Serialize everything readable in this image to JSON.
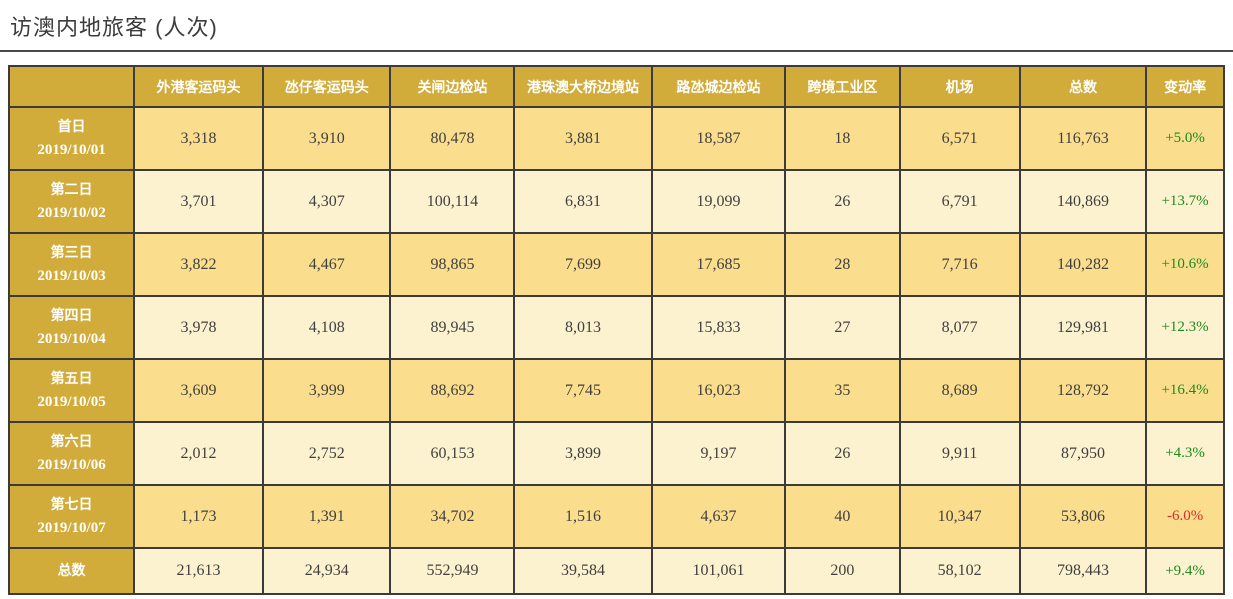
{
  "page": {
    "title": "访澳内地旅客 (人次)"
  },
  "colors": {
    "header_gold": "#D1AC3B",
    "row_dark": "#FBDE8D",
    "row_light": "#FDF2CF",
    "positive_green": "#1E8A1E",
    "negative_red": "#E02B2B",
    "border": "#3B3B3B",
    "title_gray": "#3C3C3C"
  },
  "table": {
    "columns": [
      "外港客运码头",
      "氹仔客运码头",
      "关闸边检站",
      "港珠澳大桥边境站",
      "路氹城边检站",
      "跨境工业区",
      "机场",
      "总数",
      "变动率"
    ],
    "rows": [
      {
        "label": "首日",
        "date": "2019/10/01",
        "values": [
          "3,318",
          "3,910",
          "80,478",
          "3,881",
          "18,587",
          "18",
          "6,571",
          "116,763"
        ],
        "change": "+5.0%"
      },
      {
        "label": "第二日",
        "date": "2019/10/02",
        "values": [
          "3,701",
          "4,307",
          "100,114",
          "6,831",
          "19,099",
          "26",
          "6,791",
          "140,869"
        ],
        "change": "+13.7%"
      },
      {
        "label": "第三日",
        "date": "2019/10/03",
        "values": [
          "3,822",
          "4,467",
          "98,865",
          "7,699",
          "17,685",
          "28",
          "7,716",
          "140,282"
        ],
        "change": "+10.6%"
      },
      {
        "label": "第四日",
        "date": "2019/10/04",
        "values": [
          "3,978",
          "4,108",
          "89,945",
          "8,013",
          "15,833",
          "27",
          "8,077",
          "129,981"
        ],
        "change": "+12.3%"
      },
      {
        "label": "第五日",
        "date": "2019/10/05",
        "values": [
          "3,609",
          "3,999",
          "88,692",
          "7,745",
          "16,023",
          "35",
          "8,689",
          "128,792"
        ],
        "change": "+16.4%"
      },
      {
        "label": "第六日",
        "date": "2019/10/06",
        "values": [
          "2,012",
          "2,752",
          "60,153",
          "3,899",
          "9,197",
          "26",
          "9,911",
          "87,950"
        ],
        "change": "+4.3%"
      },
      {
        "label": "第七日",
        "date": "2019/10/07",
        "values": [
          "1,173",
          "1,391",
          "34,702",
          "1,516",
          "4,637",
          "40",
          "10,347",
          "53,806"
        ],
        "change": "-6.0%"
      }
    ],
    "total_row": {
      "label": "总数",
      "values": [
        "21,613",
        "24,934",
        "552,949",
        "39,584",
        "101,061",
        "200",
        "58,102",
        "798,443"
      ],
      "change": "+9.4%"
    }
  },
  "chart_data": {
    "type": "table",
    "title": "访澳内地旅客 (人次)",
    "columns": [
      "外港客运码头",
      "氹仔客运码头",
      "关闸边检站",
      "港珠澳大桥边境站",
      "路氹城边检站",
      "跨境工业区",
      "机场",
      "总数",
      "变动率"
    ],
    "row_labels": [
      "首日 2019/10/01",
      "第二日 2019/10/02",
      "第三日 2019/10/03",
      "第四日 2019/10/04",
      "第五日 2019/10/05",
      "第六日 2019/10/06",
      "第七日 2019/10/07",
      "总数"
    ],
    "rows": [
      [
        3318,
        3910,
        80478,
        3881,
        18587,
        18,
        6571,
        116763,
        "+5.0%"
      ],
      [
        3701,
        4307,
        100114,
        6831,
        19099,
        26,
        6791,
        140869,
        "+13.7%"
      ],
      [
        3822,
        4467,
        98865,
        7699,
        17685,
        28,
        7716,
        140282,
        "+10.6%"
      ],
      [
        3978,
        4108,
        89945,
        8013,
        15833,
        27,
        8077,
        129981,
        "+12.3%"
      ],
      [
        3609,
        3999,
        88692,
        7745,
        16023,
        35,
        8689,
        128792,
        "+16.4%"
      ],
      [
        2012,
        2752,
        60153,
        3899,
        9197,
        26,
        9911,
        87950,
        "+4.3%"
      ],
      [
        1173,
        1391,
        34702,
        1516,
        4637,
        40,
        10347,
        53806,
        "-6.0%"
      ],
      [
        21613,
        24934,
        552949,
        39584,
        101061,
        200,
        58102,
        798443,
        "+9.4%"
      ]
    ]
  }
}
